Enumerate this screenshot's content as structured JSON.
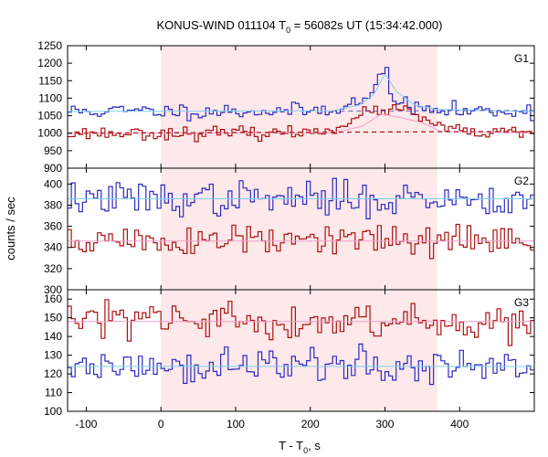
{
  "chart_data": {
    "type": "line",
    "title": {
      "prefix": "KONUS-WIND 011104 T",
      "sub": "0",
      "suffix": " = 56082s UT (15:34:42.000)"
    },
    "xlabel": {
      "prefix": "T - T",
      "sub": "0",
      "suffix": ", s"
    },
    "ylabel": "counts / sec",
    "xlim": [
      -125,
      500
    ],
    "x_ticks": [
      -100,
      0,
      100,
      200,
      300,
      400
    ],
    "x_tick_labels": [
      "-100",
      "0",
      "100",
      "200",
      "300",
      "400"
    ],
    "highlight_interval": [
      0,
      370
    ],
    "colors": {
      "blue_series": "#2b2bbf",
      "red_series": "#aa1111",
      "blue_model": "#7fcfef",
      "red_model": "#ef9fc8",
      "highlight": "#fde8ea",
      "frame": "#000000"
    },
    "panels": [
      {
        "label": "G1",
        "ylim": [
          900,
          1250
        ],
        "yticks": [
          900,
          950,
          1000,
          1050,
          1100,
          1150,
          1200,
          1250
        ],
        "ytick_labels": [
          "900",
          "950",
          "1000",
          "1050",
          "1100",
          "1150",
          "1200",
          "1250"
        ],
        "series": [
          {
            "color_key": "blue",
            "base": 1063,
            "noise": 11,
            "seed": 11,
            "bumps": [
              [
                285,
                35,
                30
              ],
              [
                298,
                8,
                95
              ]
            ],
            "model_points": [
              [
                -125,
                1062
              ],
              [
                230,
                1064
              ],
              [
                265,
                1080
              ],
              [
                285,
                1110
              ],
              [
                300,
                1170
              ],
              [
                315,
                1120
              ],
              [
                340,
                1080
              ],
              [
                370,
                1068
              ],
              [
                500,
                1062
              ]
            ]
          },
          {
            "color_key": "red",
            "base": 1000,
            "noise": 9,
            "seed": 23,
            "bumps": [
              [
                295,
                40,
                60
              ],
              [
                340,
                30,
                20
              ]
            ],
            "model_points": [
              [
                -125,
                1000
              ],
              [
                230,
                1001
              ],
              [
                270,
                1020
              ],
              [
                295,
                1055
              ],
              [
                320,
                1045
              ],
              [
                350,
                1030
              ],
              [
                375,
                1005
              ],
              [
                500,
                1000
              ]
            ],
            "background_points": [
              [
                -125,
                1000
              ],
              [
                500,
                1005
              ]
            ]
          }
        ]
      },
      {
        "label": "G2",
        "ylim": [
          300,
          415
        ],
        "yticks": [
          300,
          320,
          340,
          360,
          380,
          400
        ],
        "ytick_labels": [
          "300",
          "320",
          "340",
          "360",
          "380",
          "400"
        ],
        "series": [
          {
            "color_key": "blue",
            "base": 386,
            "noise": 8,
            "seed": 37,
            "bumps": [],
            "model_points": [
              [
                -125,
                386
              ],
              [
                500,
                386
              ]
            ]
          },
          {
            "color_key": "red",
            "base": 346,
            "noise": 8,
            "seed": 51,
            "bumps": [],
            "model_points": [
              [
                -125,
                346
              ],
              [
                500,
                346
              ]
            ]
          }
        ]
      },
      {
        "label": "G3",
        "ylim": [
          100,
          165
        ],
        "yticks": [
          100,
          110,
          120,
          130,
          140,
          150,
          160
        ],
        "ytick_labels": [
          "100",
          "110",
          "120",
          "130",
          "140",
          "150",
          "160"
        ],
        "series": [
          {
            "color_key": "red",
            "base": 148,
            "noise": 5,
            "seed": 63,
            "bumps": [],
            "model_points": [
              [
                -125,
                148
              ],
              [
                500,
                148
              ]
            ]
          },
          {
            "color_key": "blue",
            "base": 124,
            "noise": 5,
            "seed": 77,
            "bumps": [],
            "model_points": [
              [
                -125,
                124
              ],
              [
                500,
                124
              ]
            ]
          }
        ]
      }
    ],
    "bin_width_s": 5
  }
}
